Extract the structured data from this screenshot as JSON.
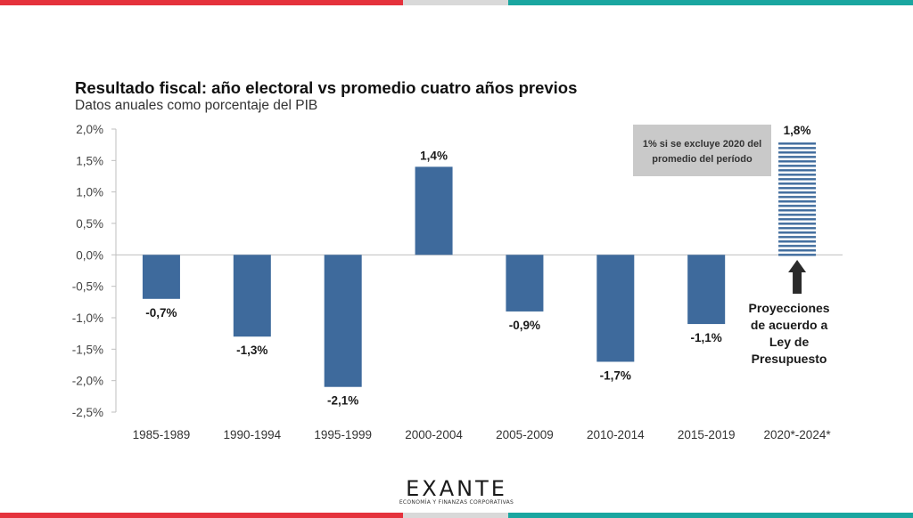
{
  "colors": {
    "band_red": "#e5323c",
    "band_gray": "#d9d9d9",
    "band_teal": "#1aa6a0",
    "bar": "#3e6a9c",
    "note_box": "#c9c9c9",
    "arrow": "#2b2b2b"
  },
  "chart_data": {
    "type": "bar",
    "title": "Resultado fiscal: año electoral vs promedio cuatro años previos",
    "subtitle": "Datos anuales como porcentaje del PIB",
    "categories": [
      "1985-1989",
      "1990-1994",
      "1995-1999",
      "2000-2004",
      "2005-2009",
      "2010-2014",
      "2015-2019",
      "2020*-2024*"
    ],
    "values": [
      -0.7,
      -1.3,
      -2.1,
      1.4,
      -0.9,
      -1.7,
      -1.1,
      1.8
    ],
    "value_labels": [
      "-0,7%",
      "-1,3%",
      "-2,1%",
      "1,4%",
      "-0,9%",
      "-1,7%",
      "-1,1%",
      "1,8%"
    ],
    "projected": [
      false,
      false,
      false,
      false,
      false,
      false,
      false,
      true
    ],
    "ylim": [
      -2.5,
      2.0
    ],
    "yticks": [
      2.0,
      1.5,
      1.0,
      0.5,
      0.0,
      -0.5,
      -1.0,
      -1.5,
      -2.0,
      -2.5
    ],
    "ytick_labels": [
      "2,0%",
      "1,5%",
      "1,0%",
      "0,5%",
      "0,0%",
      "-0,5%",
      "-1,0%",
      "-1,5%",
      "-2,0%",
      "-2,5%"
    ],
    "grid": false,
    "legend": false,
    "annotations": {
      "note_box": [
        "1% si se excluye 2020 del",
        "promedio del período"
      ],
      "projection_note": [
        "Proyecciones",
        "de acuerdo a",
        "Ley de",
        "Presupuesto"
      ]
    }
  },
  "logo": {
    "name": "EXANTE",
    "tagline": "ECONOMÍA Y FINANZAS CORPORATIVAS"
  }
}
